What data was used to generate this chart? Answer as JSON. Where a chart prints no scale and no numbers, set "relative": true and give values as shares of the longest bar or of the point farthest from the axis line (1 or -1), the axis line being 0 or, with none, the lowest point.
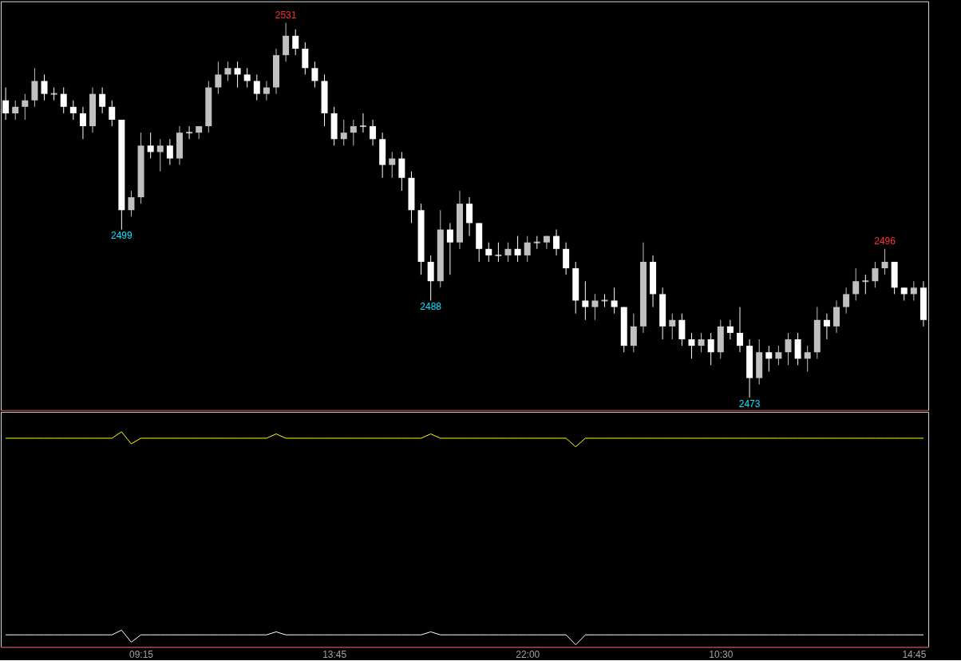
{
  "chart_data": [
    {
      "type": "candlestick",
      "tick_labels": false,
      "colors": [
        "#ffffff",
        "#c0c0c0",
        "#c0c0c0",
        "#c0c0c0",
        "#ffffff",
        "#ffffff",
        "#ffffff",
        "#ffffff",
        "#ffffff",
        "#c0c0c0",
        "#ffffff",
        "#ffffff",
        "#ffffff",
        "#c0c0c0",
        "#c0c0c0",
        "#ffffff",
        "#c0c0c0",
        "#ffffff",
        "#c0c0c0",
        "#ffffff",
        "#c0c0c0",
        "#c0c0c0",
        "#c0c0c0",
        "#c0c0c0",
        "#ffffff",
        "#ffffff",
        "#ffffff",
        "#c0c0c0",
        "#c0c0c0",
        "#c0c0c0",
        "#ffffff",
        "#ffffff",
        "#ffffff",
        "#ffffff",
        "#ffffff",
        "#c0c0c0",
        "#c0c0c0",
        "#ffffff",
        "#ffffff",
        "#ffffff",
        "#c0c0c0",
        "#ffffff",
        "#ffffff",
        "#ffffff",
        "#ffffff",
        "#c0c0c0",
        "#ffffff",
        "#c0c0c0",
        "#ffffff",
        "#ffffff",
        "#ffffff",
        "#ffffff",
        "#c0c0c0",
        "#ffffff",
        "#c0c0c0",
        "#ffffff",
        "#c0c0c0",
        "#ffffff",
        "#ffffff",
        "#ffffff",
        "#ffffff",
        "#c0c0c0",
        "#ffffff",
        "#ffffff",
        "#ffffff",
        "#c0c0c0",
        "#c0c0c0",
        "#ffffff",
        "#ffffff",
        "#c0c0c0",
        "#ffffff",
        "#ffffff",
        "#c0c0c0",
        "#ffffff",
        "#c0c0c0",
        "#ffffff",
        "#ffffff",
        "#ffffff",
        "#c0c0c0",
        "#ffffff",
        "#c0c0c0",
        "#c0c0c0",
        "#ffffff",
        "#c0c0c0",
        "#c0c0c0",
        "#ffffff",
        "#c0c0c0",
        "#c0c0c0",
        "#c0c0c0",
        "#ffffff",
        "#c0c0c0",
        "#c0c0c0",
        "#ffffff",
        "#ffffff",
        "#c0c0c0",
        "#ffffff"
      ],
      "categories": [
        null,
        null,
        null,
        null,
        null,
        null,
        null,
        null,
        null,
        null,
        null,
        null,
        null,
        null,
        null,
        null,
        null,
        null,
        null,
        null,
        null,
        null,
        null,
        null,
        null,
        null,
        null,
        null,
        null,
        null,
        null,
        null,
        null,
        null,
        null,
        null,
        null,
        null,
        null,
        null,
        null,
        null,
        null,
        null,
        null,
        null,
        null,
        null,
        null,
        null,
        null,
        null,
        null,
        null,
        null,
        null,
        null,
        null,
        null,
        null,
        null,
        null,
        null,
        null,
        null,
        null,
        null,
        null,
        null,
        null,
        null,
        null,
        null,
        null,
        null,
        null,
        null,
        null,
        null,
        null,
        null,
        null,
        null,
        null,
        null,
        null,
        null,
        null,
        null,
        null,
        null,
        null,
        null,
        null,
        null,
        null
      ],
      "ohlc": [
        [
          2519,
          2521,
          2516,
          2517
        ],
        [
          2517,
          2519,
          2516,
          2518
        ],
        [
          2518,
          2520,
          2516,
          2519
        ],
        [
          2519,
          2524,
          2518,
          2522
        ],
        [
          2522,
          2523,
          2519,
          2520
        ],
        [
          2520,
          2521,
          2519,
          2520
        ],
        [
          2520,
          2521,
          2517,
          2518
        ],
        [
          2518,
          2519,
          2516,
          2517
        ],
        [
          2517,
          2518,
          2513,
          2515
        ],
        [
          2515,
          2521,
          2514,
          2520
        ],
        [
          2520,
          2521,
          2517,
          2518
        ],
        [
          2518,
          2519,
          2515,
          2516
        ],
        [
          2516,
          2516,
          2499,
          2502
        ],
        [
          2502,
          2505,
          2501,
          2504
        ],
        [
          2504,
          2514,
          2503,
          2512
        ],
        [
          2512,
          2514,
          2510,
          2511
        ],
        [
          2511,
          2513,
          2508,
          2512
        ],
        [
          2512,
          2513,
          2509,
          2510
        ],
        [
          2510,
          2515,
          2509,
          2514
        ],
        [
          2514,
          2515,
          2513,
          2514
        ],
        [
          2514,
          2515,
          2513,
          2515
        ],
        [
          2515,
          2522,
          2514,
          2521
        ],
        [
          2521,
          2525,
          2520,
          2523
        ],
        [
          2523,
          2525,
          2522,
          2524
        ],
        [
          2524,
          2525,
          2521,
          2523
        ],
        [
          2523,
          2524,
          2521,
          2522
        ],
        [
          2522,
          2523,
          2519,
          2520
        ],
        [
          2520,
          2522,
          2519,
          2521
        ],
        [
          2521,
          2527,
          2520,
          2526
        ],
        [
          2526,
          2531,
          2525,
          2529
        ],
        [
          2529,
          2530,
          2526,
          2527
        ],
        [
          2527,
          2528,
          2523,
          2524
        ],
        [
          2524,
          2525,
          2521,
          2522
        ],
        [
          2522,
          2523,
          2515,
          2517
        ],
        [
          2517,
          2518,
          2512,
          2513
        ],
        [
          2513,
          2516,
          2512,
          2514
        ],
        [
          2514,
          2516,
          2512,
          2515
        ],
        [
          2515,
          2517,
          2514,
          2515
        ],
        [
          2515,
          2516,
          2512,
          2513
        ],
        [
          2513,
          2514,
          2507,
          2509
        ],
        [
          2509,
          2511,
          2507,
          2510
        ],
        [
          2510,
          2511,
          2505,
          2507
        ],
        [
          2507,
          2508,
          2500,
          2502
        ],
        [
          2502,
          2503,
          2492,
          2494
        ],
        [
          2494,
          2495,
          2488,
          2491
        ],
        [
          2491,
          2502,
          2490,
          2499
        ],
        [
          2499,
          2500,
          2492,
          2497
        ],
        [
          2497,
          2505,
          2496,
          2503
        ],
        [
          2503,
          2504,
          2498,
          2500
        ],
        [
          2500,
          2500,
          2494,
          2496
        ],
        [
          2496,
          2497,
          2494,
          2495
        ],
        [
          2495,
          2497,
          2494,
          2495
        ],
        [
          2495,
          2497,
          2494,
          2496
        ],
        [
          2496,
          2498,
          2494,
          2495
        ],
        [
          2495,
          2498,
          2494,
          2497
        ],
        [
          2497,
          2498,
          2496,
          2497
        ],
        [
          2497,
          2498,
          2496,
          2498
        ],
        [
          2498,
          2499,
          2495,
          2496
        ],
        [
          2496,
          2497,
          2492,
          2493
        ],
        [
          2493,
          2494,
          2486,
          2488
        ],
        [
          2488,
          2491,
          2485,
          2487
        ],
        [
          2487,
          2489,
          2485,
          2488
        ],
        [
          2488,
          2489,
          2487,
          2488
        ],
        [
          2488,
          2490,
          2486,
          2487
        ],
        [
          2487,
          2487,
          2480,
          2481
        ],
        [
          2481,
          2486,
          2480,
          2484
        ],
        [
          2484,
          2497,
          2483,
          2494
        ],
        [
          2494,
          2495,
          2487,
          2489
        ],
        [
          2489,
          2490,
          2482,
          2484
        ],
        [
          2484,
          2486,
          2482,
          2485
        ],
        [
          2485,
          2486,
          2481,
          2482
        ],
        [
          2482,
          2483,
          2479,
          2481
        ],
        [
          2481,
          2483,
          2480,
          2482
        ],
        [
          2482,
          2483,
          2478,
          2480
        ],
        [
          2480,
          2485,
          2479,
          2484
        ],
        [
          2484,
          2485,
          2482,
          2483
        ],
        [
          2483,
          2487,
          2480,
          2481
        ],
        [
          2481,
          2482,
          2473,
          2476
        ],
        [
          2476,
          2482,
          2475,
          2480
        ],
        [
          2480,
          2481,
          2477,
          2479
        ],
        [
          2479,
          2481,
          2478,
          2480
        ],
        [
          2480,
          2483,
          2478,
          2482
        ],
        [
          2482,
          2483,
          2478,
          2479
        ],
        [
          2479,
          2481,
          2477,
          2480
        ],
        [
          2480,
          2487,
          2479,
          2485
        ],
        [
          2485,
          2486,
          2482,
          2484
        ],
        [
          2484,
          2488,
          2483,
          2487
        ],
        [
          2487,
          2490,
          2486,
          2489
        ],
        [
          2489,
          2493,
          2488,
          2491
        ],
        [
          2491,
          2492,
          2489,
          2491
        ],
        [
          2491,
          2494,
          2490,
          2493
        ],
        [
          2493,
          2496,
          2492,
          2494
        ],
        [
          2494,
          2494,
          2489,
          2490
        ],
        [
          2490,
          2490,
          2488,
          2489
        ],
        [
          2489,
          2491,
          2488,
          2490
        ],
        [
          2490,
          2491,
          2484,
          2485
        ]
      ],
      "annotations": [
        {
          "text": "2531",
          "y": 2531
        },
        {
          "text": "2499",
          "y": 2499
        },
        {
          "text": "2488",
          "y": 2488
        },
        {
          "text": "2473",
          "y": 2473
        },
        {
          "text": "2496",
          "y": 2496
        }
      ]
    },
    {
      "type": "line",
      "relative": true,
      "categories": [
        null,
        null,
        null,
        null,
        null,
        null,
        null,
        null,
        null,
        null,
        null,
        null,
        null,
        null,
        "09:15",
        null,
        null,
        null,
        null,
        null,
        null,
        null,
        null,
        null,
        null,
        null,
        null,
        null,
        null,
        null,
        null,
        null,
        null,
        null,
        "13:45",
        null,
        null,
        null,
        null,
        null,
        null,
        null,
        null,
        null,
        null,
        null,
        null,
        null,
        null,
        null,
        null,
        null,
        null,
        null,
        "22:00",
        null,
        null,
        null,
        null,
        null,
        null,
        null,
        null,
        null,
        null,
        null,
        null,
        null,
        null,
        null,
        null,
        null,
        null,
        null,
        "10:30",
        null,
        null,
        null,
        null,
        null,
        null,
        null,
        null,
        null,
        null,
        null,
        null,
        null,
        null,
        null,
        null,
        null,
        null,
        null,
        "14:45",
        null
      ],
      "series": [
        {
          "color": "#ffff00",
          "values": [
            0.97,
            0.97,
            0.97,
            0.97,
            0.97,
            0.97,
            0.97,
            0.97,
            0.97,
            0.97,
            0.97,
            0.97,
            1,
            0.944,
            0.97,
            0.97,
            0.97,
            0.97,
            0.97,
            0.97,
            0.97,
            0.97,
            0.97,
            0.97,
            0.97,
            0.97,
            0.97,
            0.97,
            0.99,
            0.97,
            0.97,
            0.97,
            0.97,
            0.97,
            0.97,
            0.97,
            0.97,
            0.97,
            0.97,
            0.97,
            0.97,
            0.97,
            0.97,
            0.97,
            0.99,
            0.97,
            0.97,
            0.97,
            0.97,
            0.97,
            0.97,
            0.97,
            0.97,
            0.97,
            0.97,
            0.97,
            0.97,
            0.97,
            0.97,
            0.93,
            0.97,
            0.97,
            0.97,
            0.97,
            0.97,
            0.97,
            0.97,
            0.97,
            0.97,
            0.97,
            0.97,
            0.97,
            0.97,
            0.97,
            0.97,
            0.97,
            0.97,
            0.97,
            0.97,
            0.97,
            0.97,
            0.97,
            0.97,
            0.97,
            0.97,
            0.97,
            0.97,
            0.97,
            0.97,
            0.97,
            0.97,
            0.97,
            0.97,
            0.97,
            0.97,
            0.97
          ]
        },
        {
          "color": "#ffffff",
          "values": [
            0.056,
            0.056,
            0.056,
            0.056,
            0.056,
            0.056,
            0.056,
            0.056,
            0.056,
            0.056,
            0.056,
            0.056,
            0.078,
            0.022,
            0.056,
            0.056,
            0.056,
            0.056,
            0.056,
            0.056,
            0.056,
            0.056,
            0.056,
            0.056,
            0.056,
            0.056,
            0.056,
            0.056,
            0.07,
            0.056,
            0.056,
            0.056,
            0.056,
            0.056,
            0.056,
            0.056,
            0.056,
            0.056,
            0.056,
            0.056,
            0.056,
            0.056,
            0.056,
            0.056,
            0.07,
            0.056,
            0.056,
            0.056,
            0.056,
            0.056,
            0.056,
            0.056,
            0.056,
            0.056,
            0.056,
            0.056,
            0.056,
            0.056,
            0.056,
            0.01,
            0.056,
            0.056,
            0.056,
            0.056,
            0.056,
            0.056,
            0.056,
            0.056,
            0.056,
            0.056,
            0.056,
            0.056,
            0.056,
            0.056,
            0.056,
            0.056,
            0.056,
            0.056,
            0.056,
            0.056,
            0.056,
            0.056,
            0.056,
            0.056,
            0.056,
            0.056,
            0.056,
            0.056,
            0.056,
            0.056,
            0.056,
            0.056,
            0.056,
            0.056,
            0.056,
            0.056
          ]
        }
      ]
    }
  ]
}
